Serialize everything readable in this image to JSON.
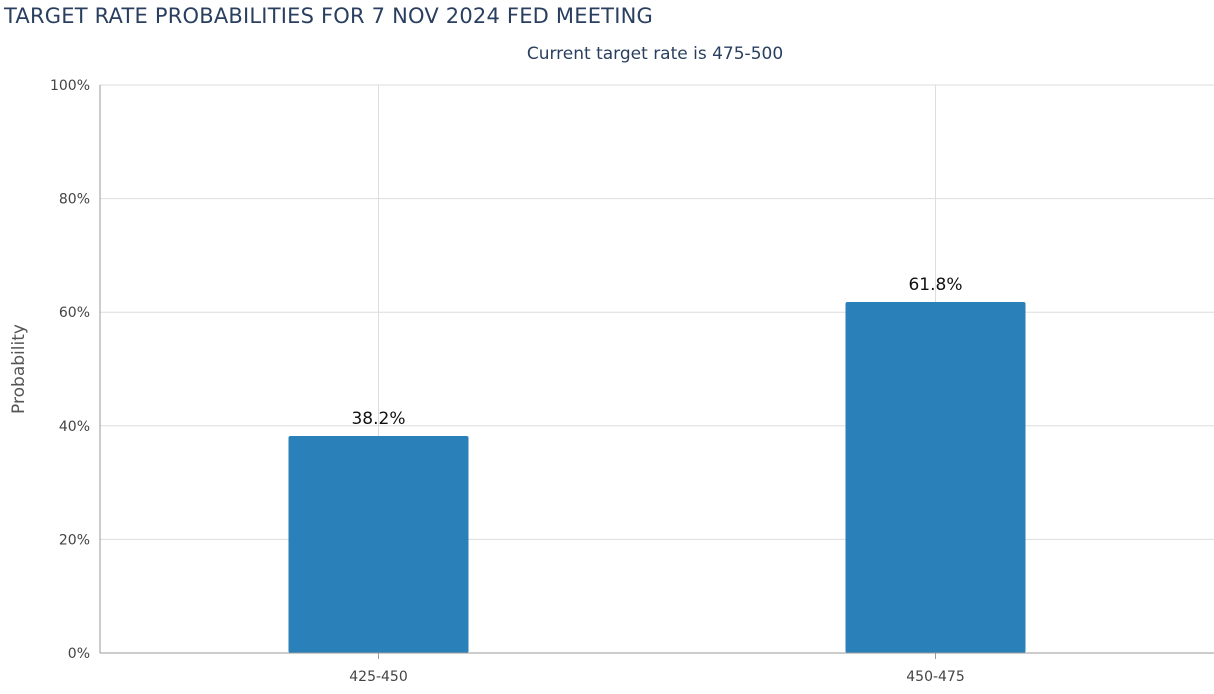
{
  "chart_data": {
    "type": "bar",
    "title": "TARGET RATE PROBABILITIES FOR 7 NOV 2024 FED MEETING",
    "subtitle": "Current target rate is 475-500",
    "categories": [
      "425-450",
      "450-475"
    ],
    "values": [
      38.2,
      61.8
    ],
    "value_labels": [
      "38.2%",
      "61.8%"
    ],
    "xlabel": "",
    "ylabel": "Probability",
    "ylim": [
      0,
      100
    ],
    "yticks": [
      0,
      20,
      40,
      60,
      80,
      100
    ],
    "ytick_labels": [
      "0%",
      "20%",
      "40%",
      "60%",
      "80%",
      "100%"
    ],
    "grid": true,
    "legend": "none",
    "bar_color": "#2a80b9",
    "grid_color": "#dddddd",
    "axis_color": "#999999"
  }
}
